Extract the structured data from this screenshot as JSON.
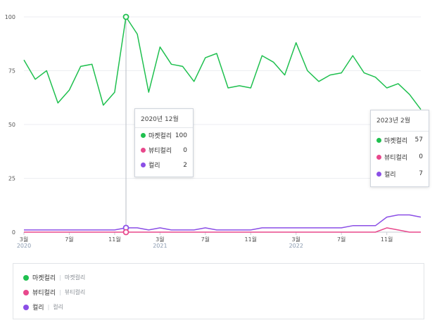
{
  "chart_data": {
    "type": "line",
    "ylim": [
      0,
      100
    ],
    "yticks": [
      "100",
      "75",
      "50",
      "25",
      "0"
    ],
    "x": [
      "2020-03",
      "2020-04",
      "2020-05",
      "2020-06",
      "2020-07",
      "2020-08",
      "2020-09",
      "2020-10",
      "2020-11",
      "2020-12",
      "2021-01",
      "2021-02",
      "2021-03",
      "2021-04",
      "2021-05",
      "2021-06",
      "2021-07",
      "2021-08",
      "2021-09",
      "2021-10",
      "2021-11",
      "2021-12",
      "2022-01",
      "2022-02",
      "2022-03",
      "2022-04",
      "2022-05",
      "2022-06",
      "2022-07",
      "2022-08",
      "2022-09",
      "2022-10",
      "2022-11",
      "2022-12",
      "2023-01",
      "2023-02"
    ],
    "xticks": [
      {
        "index": 0,
        "month": "3월",
        "year": "2020"
      },
      {
        "index": 4,
        "month": "7월",
        "year": ""
      },
      {
        "index": 8,
        "month": "11월",
        "year": ""
      },
      {
        "index": 12,
        "month": "3월",
        "year": "2021"
      },
      {
        "index": 16,
        "month": "7월",
        "year": ""
      },
      {
        "index": 20,
        "month": "11월",
        "year": ""
      },
      {
        "index": 24,
        "month": "3월",
        "year": "2022"
      },
      {
        "index": 28,
        "month": "7월",
        "year": ""
      },
      {
        "index": 32,
        "month": "11월",
        "year": ""
      }
    ],
    "series": [
      {
        "name": "마켓컬리",
        "color": "#1fc04f",
        "values": [
          80,
          71,
          75,
          60,
          66,
          77,
          78,
          59,
          65,
          100,
          92,
          65,
          86,
          78,
          77,
          70,
          81,
          83,
          67,
          68,
          67,
          82,
          79,
          73,
          88,
          75,
          70,
          73,
          74,
          82,
          74,
          72,
          67,
          69,
          64,
          57
        ]
      },
      {
        "name": "뷰티컬리",
        "color": "#e8488c",
        "values": [
          0,
          0,
          0,
          0,
          0,
          0,
          0,
          0,
          0,
          0,
          0,
          0,
          0,
          0,
          0,
          0,
          0,
          0,
          0,
          0,
          0,
          0,
          0,
          0,
          0,
          0,
          0,
          0,
          0,
          0,
          0,
          0,
          2,
          1,
          0,
          0
        ]
      },
      {
        "name": "컬리",
        "color": "#8b4fe6",
        "values": [
          1,
          1,
          1,
          1,
          1,
          1,
          1,
          1,
          1,
          2,
          2,
          1,
          2,
          1,
          1,
          1,
          2,
          1,
          1,
          1,
          1,
          2,
          2,
          2,
          2,
          2,
          2,
          2,
          2,
          3,
          3,
          3,
          7,
          8,
          8,
          7
        ]
      }
    ],
    "hover_index": 9,
    "grid": true
  },
  "tooltips": [
    {
      "title": "2020년 12월",
      "rows": [
        {
          "name": "마켓컬리",
          "value": "100",
          "color": "#1fc04f"
        },
        {
          "name": "뷰티컬리",
          "value": "0",
          "color": "#e8488c"
        },
        {
          "name": "컬리",
          "value": "2",
          "color": "#8b4fe6"
        }
      ]
    },
    {
      "title": "2023년 2월",
      "rows": [
        {
          "name": "마켓컬리",
          "value": "57",
          "color": "#1fc04f"
        },
        {
          "name": "뷰티컬리",
          "value": "0",
          "color": "#e8488c"
        },
        {
          "name": "컬리",
          "value": "7",
          "color": "#8b4fe6"
        }
      ]
    }
  ],
  "legend": [
    {
      "name": "마켓컬리",
      "sub": "마켓컬리",
      "color": "#1fc04f"
    },
    {
      "name": "뷰티컬리",
      "sub": "뷰티컬리",
      "color": "#e8488c"
    },
    {
      "name": "컬리",
      "sub": "컬리",
      "color": "#8b4fe6"
    }
  ]
}
